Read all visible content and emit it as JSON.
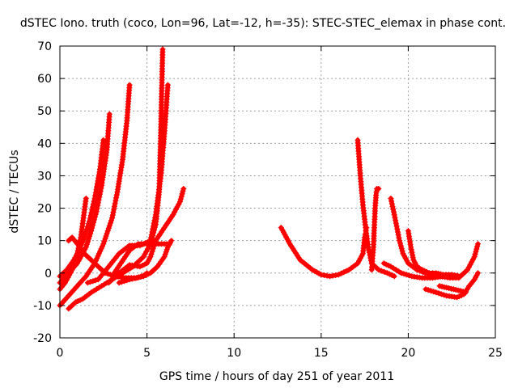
{
  "chart_data": {
    "type": "scatter",
    "title": "dSTEC Iono. truth (coco, Lon=96, Lat=-12, h=-35): STEC-STEC_elemax in phase cont.",
    "xlabel": "GPS time / hours of day 251 of year 2011",
    "ylabel": "dSTEC  / TECUs",
    "xlim": [
      0,
      25
    ],
    "ylim": [
      -20,
      70
    ],
    "xticks": [
      0,
      5,
      10,
      15,
      20,
      25
    ],
    "yticks": [
      -20,
      -10,
      0,
      10,
      20,
      30,
      40,
      50,
      60,
      70
    ],
    "grid": true,
    "marker": "+",
    "color": "#ff0000",
    "series": [
      {
        "x": [
          0.0,
          0.4,
          0.8,
          1.1,
          1.4,
          1.7,
          2.0,
          2.3,
          2.5
        ],
        "y": [
          -1,
          1,
          4,
          7,
          11,
          16,
          23,
          32,
          41
        ]
      },
      {
        "x": [
          0.0,
          0.5,
          1.0,
          1.5,
          1.8,
          2.1,
          2.4,
          2.7,
          2.85
        ],
        "y": [
          -3,
          0,
          3,
          8,
          13,
          19,
          27,
          38,
          49
        ]
      },
      {
        "x": [
          0.0,
          0.3,
          0.7,
          1.0,
          1.2,
          1.35,
          1.5
        ],
        "y": [
          -5,
          -3,
          1,
          6,
          11,
          17,
          23
        ]
      },
      {
        "x": [
          0.0,
          0.5,
          1.0,
          1.5,
          2.0,
          2.5,
          3.0,
          3.3,
          3.6,
          3.85,
          4.0
        ],
        "y": [
          -10,
          -7,
          -4,
          -1,
          3,
          9,
          17,
          25,
          35,
          47,
          58
        ]
      },
      {
        "x": [
          0.5,
          0.9,
          1.3,
          1.8,
          2.4,
          3.0,
          3.6,
          4.2,
          4.8,
          5.2,
          5.5,
          5.7,
          5.8,
          5.9
        ],
        "y": [
          -11,
          -9,
          -8,
          -6,
          -4,
          -2,
          0,
          2,
          5,
          9,
          15,
          25,
          45,
          69
        ]
      },
      {
        "x": [
          0.5,
          0.7,
          1.0,
          1.4,
          2.0,
          2.6,
          3.2,
          3.8,
          4.4,
          4.8,
          5.0
        ],
        "y": [
          10,
          11,
          9,
          6,
          3,
          0,
          -1,
          -1.5,
          -1.5,
          -0.8,
          0
        ]
      },
      {
        "x": [
          1.6,
          2.2,
          2.8,
          3.4,
          4.0,
          4.6,
          5.2,
          5.5,
          5.8,
          6.0,
          6.2
        ],
        "y": [
          -3,
          -2,
          2,
          6,
          8.5,
          8.5,
          10,
          18,
          30,
          43,
          58
        ]
      },
      {
        "x": [
          2.8,
          3.4,
          4.0,
          4.6,
          5.0,
          5.2,
          5.5,
          6.0,
          6.5,
          6.9,
          7.1
        ],
        "y": [
          -3,
          0,
          2.5,
          2,
          3,
          5,
          10,
          14,
          18,
          22,
          26
        ]
      },
      {
        "x": [
          3.0,
          3.5,
          4.0,
          4.5,
          5.0,
          5.5,
          6.0,
          6.3
        ],
        "y": [
          -1,
          3,
          7,
          9,
          9,
          9,
          9,
          9
        ]
      },
      {
        "x": [
          3.4,
          4.0,
          4.8,
          5.2,
          5.6,
          6.0,
          6.2,
          6.4
        ],
        "y": [
          -3,
          -2,
          -1,
          0,
          2,
          5,
          8,
          10
        ]
      },
      {
        "x": [
          12.7,
          13.2,
          13.8,
          14.5,
          15.0,
          15.5,
          16.0,
          16.6,
          17.1,
          17.4,
          17.5,
          17.6
        ],
        "y": [
          14,
          9,
          4,
          1,
          -0.5,
          -1,
          -0.5,
          1,
          3,
          6,
          11,
          14
        ]
      },
      {
        "x": [
          17.1,
          17.25,
          17.4,
          17.55,
          17.7,
          17.9,
          18.3,
          18.8,
          19.2
        ],
        "y": [
          41,
          30,
          21,
          14,
          8,
          3,
          1,
          0,
          -1
        ]
      },
      {
        "x": [
          17.9,
          18.0,
          18.05,
          18.1,
          18.15,
          18.2,
          18.3
        ],
        "y": [
          1,
          8,
          14,
          20,
          24,
          26,
          26
        ]
      },
      {
        "x": [
          18.6,
          19.0,
          19.6,
          20.2,
          20.8,
          21.4,
          22.0,
          22.5
        ],
        "y": [
          3,
          2,
          0,
          -1,
          -1.5,
          -1.5,
          -1,
          -1
        ]
      },
      {
        "x": [
          19.0,
          19.2,
          19.5,
          19.7,
          20.0,
          20.5,
          21.0,
          21.8,
          22.4,
          22.9
        ],
        "y": [
          23,
          18,
          10,
          6,
          3,
          1,
          0,
          -1,
          -1.5,
          -1.5
        ]
      },
      {
        "x": [
          20.0,
          20.15,
          20.3,
          20.5,
          20.8,
          21.2,
          21.6,
          22.0,
          22.5,
          23.0
        ],
        "y": [
          13,
          8,
          4,
          2,
          1,
          0,
          0,
          -0.5,
          -0.5,
          -1
        ]
      },
      {
        "x": [
          22.6,
          23.0,
          23.4,
          23.8,
          24.0
        ],
        "y": [
          -1,
          -1,
          1,
          5,
          9
        ]
      },
      {
        "x": [
          21.0,
          21.6,
          22.2,
          22.8,
          23.2,
          23.5,
          23.8,
          24.0
        ],
        "y": [
          -5,
          -6,
          -7,
          -7.5,
          -6.5,
          -4,
          -2,
          0
        ]
      },
      {
        "x": [
          21.8,
          22.2,
          22.6,
          23.0,
          23.3
        ],
        "y": [
          -4,
          -4.5,
          -5,
          -5.5,
          -6
        ]
      }
    ]
  }
}
